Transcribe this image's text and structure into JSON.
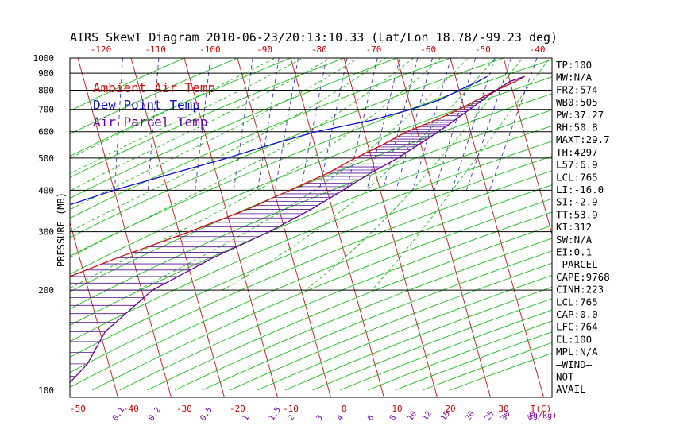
{
  "chart_data": {
    "type": "line",
    "title": "AIRS SkewT Diagram 2010-06-23/20:13:10.33 (Lat/Lon 18.78/-99.23 deg)",
    "ylabel": "PRESSURE (MB)",
    "bottom_unit": "T(C)",
    "mixing_unit": "(g/kg)",
    "y_axis": {
      "scale": "log",
      "ylim": [
        1000,
        100
      ],
      "ticks": [
        100,
        200,
        300,
        400,
        500,
        600,
        700,
        800,
        900,
        1000
      ]
    },
    "temp_ticks_bottom": [
      -50,
      -40,
      -30,
      -20,
      -10,
      0,
      10,
      20,
      30
    ],
    "temp_ticks_top": [
      -120,
      -110,
      -100,
      -90,
      -80,
      -70,
      -60,
      -50,
      -40
    ],
    "mixing_ratio_labels": [
      "0.1",
      "0.2",
      "0.5",
      "1",
      "1.5",
      "2",
      "3",
      "4",
      "6",
      "8",
      "10",
      "12",
      "15",
      "20",
      "25",
      "30",
      "40"
    ],
    "legend": [
      {
        "label": "Ambient Air Temp",
        "color": "#d01010"
      },
      {
        "label": "Dew Point Temp",
        "color": "#1010d0"
      },
      {
        "label": "Air Parcel Temp",
        "color": "#6a00a0"
      }
    ],
    "series": [
      {
        "name": "Ambient Air Temp",
        "color": "#d01010",
        "points": [
          [
            100,
            -76
          ],
          [
            120,
            -77
          ],
          [
            150,
            -80
          ],
          [
            180,
            -74
          ],
          [
            200,
            -70
          ],
          [
            250,
            -53
          ],
          [
            300,
            -38
          ],
          [
            350,
            -26
          ],
          [
            400,
            -17
          ],
          [
            450,
            -9
          ],
          [
            500,
            -3
          ],
          [
            550,
            3
          ],
          [
            600,
            8
          ],
          [
            650,
            14
          ],
          [
            700,
            19
          ],
          [
            750,
            23
          ],
          [
            800,
            27
          ],
          [
            850,
            31
          ],
          [
            880,
            33
          ]
        ]
      },
      {
        "name": "Dew Point Temp",
        "color": "#1010d0",
        "points": [
          [
            100,
            -92
          ],
          [
            140,
            -90
          ],
          [
            200,
            -87
          ],
          [
            250,
            -85
          ],
          [
            300,
            -74
          ],
          [
            350,
            -62
          ],
          [
            400,
            -50
          ],
          [
            450,
            -38
          ],
          [
            500,
            -27
          ],
          [
            550,
            -18
          ],
          [
            600,
            -9
          ],
          [
            650,
            2
          ],
          [
            700,
            10
          ],
          [
            750,
            16
          ],
          [
            800,
            20
          ],
          [
            850,
            24
          ],
          [
            880,
            26
          ]
        ]
      },
      {
        "name": "Air Parcel Temp",
        "color": "#6a00a0",
        "points": [
          [
            100,
            -70
          ],
          [
            120,
            -64
          ],
          [
            150,
            -59
          ],
          [
            180,
            -52
          ],
          [
            200,
            -48
          ],
          [
            250,
            -35
          ],
          [
            300,
            -23
          ],
          [
            350,
            -14
          ],
          [
            400,
            -7
          ],
          [
            450,
            -1
          ],
          [
            500,
            5
          ],
          [
            600,
            14
          ],
          [
            700,
            21
          ],
          [
            750,
            24
          ],
          [
            800,
            27
          ],
          [
            850,
            30
          ],
          [
            880,
            33
          ]
        ]
      }
    ],
    "stats": [
      "TP:100",
      "MW:N/A",
      "FRZ:574",
      "WB0:505",
      "PW:37.27",
      "RH:50.8",
      "MAXT:29.7",
      "TH:4297",
      "L57:6.9",
      "LCL:765",
      "LI:-16.0",
      "SI:-2.9",
      "TT:53.9",
      "KI:312",
      "SW:N/A",
      "EI:0.1",
      "–PARCEL–",
      "CAPE:9768",
      "CINH:223",
      "LCL:765",
      "CAP:0.0",
      "LFC:764",
      "EL:100",
      "MPL:N/A",
      "–WIND–",
      "NOT",
      "AVAIL"
    ]
  }
}
